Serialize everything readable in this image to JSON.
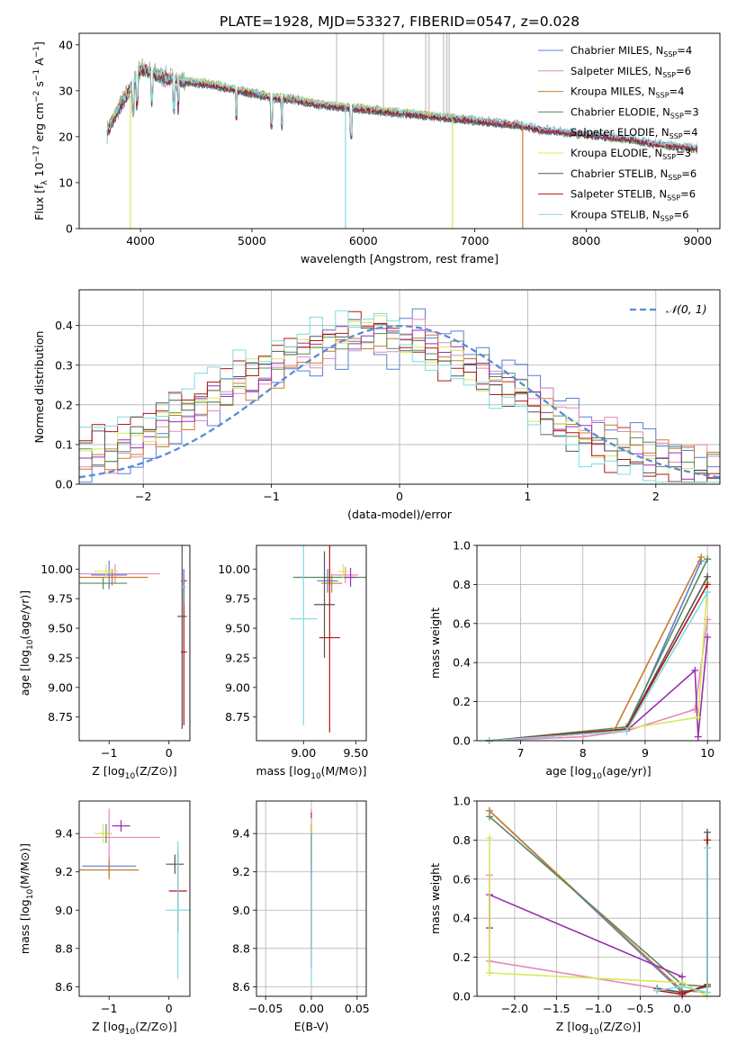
{
  "figure": {
    "title": "PLATE=1928, MJD=53327, FIBERID=0547, z=0.028"
  },
  "series_styles": [
    {
      "name": "Chabrier MILES, N_SSP=4",
      "legend_main": "Chabrier MILES, N",
      "legend_sub": "SSP",
      "legend_tail": "=4",
      "color": "#5b7fd6"
    },
    {
      "name": "Salpeter MILES, N_SSP=6",
      "legend_main": "Salpeter MILES, N",
      "legend_sub": "SSP",
      "legend_tail": "=6",
      "color": "#e588b8"
    },
    {
      "name": "Kroupa MILES, N_SSP=4",
      "legend_main": "Kroupa MILES, N",
      "legend_sub": "SSP",
      "legend_tail": "=4",
      "color": "#c87d2e"
    },
    {
      "name": "Chabrier ELODIE, N_SSP=3",
      "legend_main": "Chabrier ELODIE, N",
      "legend_sub": "SSP",
      "legend_tail": "=3",
      "color": "#5b8a5b"
    },
    {
      "name": "Salpeter ELODIE, N_SSP=4",
      "legend_main": "Salpeter ELODIE, N",
      "legend_sub": "SSP",
      "legend_tail": "=4",
      "color": "#9a2fb0"
    },
    {
      "name": "Kroupa ELODIE, N_SSP=3",
      "legend_main": "Kroupa ELODIE, N",
      "legend_sub": "SSP",
      "legend_tail": "=3",
      "color": "#d8e85a"
    },
    {
      "name": "Chabrier STELIB, N_SSP=6",
      "legend_main": "Chabrier STELIB, N",
      "legend_sub": "SSP",
      "legend_tail": "=6",
      "color": "#555555"
    },
    {
      "name": "Salpeter STELIB, N_SSP=6",
      "legend_main": "Salpeter STELIB, N",
      "legend_sub": "SSP",
      "legend_tail": "=6",
      "color": "#b01515"
    },
    {
      "name": "Kroupa STELIB, N_SSP=6",
      "legend_main": "Kroupa STELIB, N",
      "legend_sub": "SSP",
      "legend_tail": "=6",
      "color": "#7fdbe0"
    }
  ],
  "chart_data": [
    {
      "id": "spectrum",
      "type": "line",
      "xlabel": "wavelength [Angstrom, rest frame]",
      "ylabel": "Flux [f_λ 10^-17 erg cm^-2 s^-1 A^-1]",
      "xlim": [
        3450,
        9200
      ],
      "ylim": [
        0,
        42.5
      ],
      "xticks": [
        4000,
        5000,
        6000,
        7000,
        8000,
        9000
      ],
      "yticks": [
        0,
        10,
        20,
        30,
        40
      ],
      "grid": false,
      "legend": "top-right",
      "data_curve": {
        "x": [
          3700,
          3800,
          3900,
          4000,
          4100,
          4200,
          4400,
          4600,
          4800,
          5000,
          5200,
          5400,
          5600,
          5800,
          6000,
          6200,
          6400,
          6600,
          6800,
          7000,
          7200,
          7400,
          7600,
          7800,
          8000,
          8200,
          8400,
          8600,
          8800,
          9000
        ],
        "y": [
          21,
          26,
          30,
          35,
          34,
          33,
          32,
          31.5,
          30.5,
          29.5,
          28.5,
          28,
          27,
          26.5,
          26,
          25.5,
          25,
          24.5,
          24,
          23.5,
          23,
          22.5,
          21.5,
          21,
          20.5,
          20,
          19.5,
          18.5,
          18,
          17.5
        ]
      },
      "model_end_wavelength": [
        7430,
        9000,
        7430,
        9000,
        9000,
        6800,
        9000,
        9000,
        9000
      ],
      "line_drops": [
        {
          "x": 3910,
          "color": "#d8e85a"
        },
        {
          "x": 5840,
          "color": "#7fdbe0"
        },
        {
          "x": 6800,
          "color": "#d8e85a"
        },
        {
          "x": 7430,
          "color": "#c87d2e"
        }
      ]
    },
    {
      "id": "residuals",
      "type": "line",
      "xlabel": "(data-model)/error",
      "ylabel": "Normed distribution",
      "xlim": [
        -2.5,
        2.5
      ],
      "ylim": [
        0,
        0.49
      ],
      "xticks": [
        -2,
        -1,
        0,
        1,
        2
      ],
      "yticks": [
        0.0,
        0.1,
        0.2,
        0.3,
        0.4
      ],
      "grid": true,
      "legend": "top-right",
      "legend_label": "𝒩(0, 1)",
      "normal_curve": {
        "mean": 0,
        "sigma": 1
      },
      "histogram_bins": {
        "start": -2.5,
        "width": 0.1
      },
      "histogram_base": [
        0.07,
        0.08,
        0.09,
        0.1,
        0.12,
        0.13,
        0.15,
        0.17,
        0.19,
        0.21,
        0.22,
        0.24,
        0.26,
        0.27,
        0.29,
        0.3,
        0.32,
        0.33,
        0.35,
        0.36,
        0.37,
        0.37,
        0.38,
        0.38,
        0.37,
        0.37,
        0.36,
        0.35,
        0.33,
        0.32,
        0.3,
        0.28,
        0.26,
        0.24,
        0.22,
        0.2,
        0.18,
        0.16,
        0.14,
        0.12,
        0.11,
        0.1,
        0.09,
        0.08,
        0.07,
        0.06,
        0.05,
        0.04,
        0.03,
        0.03
      ]
    },
    {
      "id": "age_vs_Z",
      "type": "scatter",
      "xlabel": "Z [log10(Z/Z⊙)]",
      "ylabel": "age [log10(age/yr)]",
      "xlim": [
        -1.5,
        0.35
      ],
      "ylim": [
        8.55,
        10.2
      ],
      "xticks": [
        -1,
        0
      ],
      "yticks": [
        8.75,
        9.0,
        9.25,
        9.5,
        9.75,
        10.0
      ],
      "grid": false,
      "points": [
        {
          "s": 0,
          "x": -1.0,
          "y": 9.95,
          "xerr": 0.3,
          "yerr": 0.12
        },
        {
          "s": 1,
          "x": -0.9,
          "y": 9.96,
          "xerr": 0.75,
          "yerr": 0.08
        },
        {
          "s": 2,
          "x": -0.95,
          "y": 9.93,
          "xerr": 0.6,
          "yerr": 0.07
        },
        {
          "s": 3,
          "x": -1.1,
          "y": 9.88,
          "xerr": 0.4,
          "yerr": 0.05
        },
        {
          "s": 4,
          "x": 0.25,
          "y": 9.9,
          "xerr": 0.05,
          "yerr": 0.1
        },
        {
          "s": 5,
          "x": -1.05,
          "y": 9.98,
          "xerr": 0.2,
          "yerr": 0.06
        },
        {
          "s": 6,
          "x": 0.22,
          "y": 9.6,
          "xerr": 0.08,
          "yerr": 0.95
        },
        {
          "s": 7,
          "x": 0.25,
          "y": 9.3,
          "xerr": 0.05,
          "yerr": 0.62
        },
        {
          "s": 8,
          "x": 0.24,
          "y": 9.85,
          "xerr": 0.05,
          "yerr": 0.15
        }
      ]
    },
    {
      "id": "age_vs_mass",
      "type": "scatter",
      "xlabel": "mass [log10(M/M⊙)]",
      "ylabel": "",
      "xlim": [
        8.55,
        9.6
      ],
      "ylim": [
        8.55,
        10.2
      ],
      "xticks": [
        9.0,
        9.5
      ],
      "yticks": [
        8.75,
        9.0,
        9.25,
        9.5,
        9.75,
        10.0
      ],
      "grid": false,
      "points": [
        {
          "s": 0,
          "x": 9.23,
          "y": 9.9,
          "xerr": 0.1,
          "yerr": 0.1
        },
        {
          "s": 1,
          "x": 9.4,
          "y": 9.95,
          "xerr": 0.12,
          "yerr": 0.07
        },
        {
          "s": 2,
          "x": 9.27,
          "y": 9.88,
          "xerr": 0.1,
          "yerr": 0.08
        },
        {
          "s": 3,
          "x": 9.25,
          "y": 9.93,
          "xerr": 0.35,
          "yerr": 0.07
        },
        {
          "s": 4,
          "x": 9.45,
          "y": 9.93,
          "xerr": 0.05,
          "yerr": 0.08
        },
        {
          "s": 5,
          "x": 9.38,
          "y": 9.98,
          "xerr": 0.05,
          "yerr": 0.06
        },
        {
          "s": 6,
          "x": 9.2,
          "y": 9.7,
          "xerr": 0.1,
          "yerr": 0.45
        },
        {
          "s": 7,
          "x": 9.25,
          "y": 9.42,
          "xerr": 0.1,
          "yerr": 0.8
        },
        {
          "s": 8,
          "x": 9.0,
          "y": 9.58,
          "xerr": 0.13,
          "yerr": 0.9
        }
      ]
    },
    {
      "id": "massweight_vs_age",
      "type": "line",
      "xlabel": "age [log10(age/yr)]",
      "ylabel": "mass weight",
      "xlim": [
        6.3,
        10.2
      ],
      "ylim": [
        0,
        1.0
      ],
      "xticks": [
        7,
        8,
        9,
        10
      ],
      "yticks": [
        0.0,
        0.2,
        0.4,
        0.6,
        0.8,
        1.0
      ],
      "grid": true,
      "series": [
        {
          "s": 0,
          "x": [
            6.5,
            8.7,
            9.9
          ],
          "y": [
            0.0,
            0.05,
            0.92
          ]
        },
        {
          "s": 1,
          "x": [
            6.5,
            8.0,
            8.7,
            9.8,
            10.0
          ],
          "y": [
            0.0,
            0.02,
            0.05,
            0.16,
            0.62
          ]
        },
        {
          "s": 2,
          "x": [
            6.5,
            8.5,
            9.9
          ],
          "y": [
            0.0,
            0.05,
            0.94
          ]
        },
        {
          "s": 3,
          "x": [
            6.5,
            8.7,
            10.0
          ],
          "y": [
            0.0,
            0.07,
            0.93
          ]
        },
        {
          "s": 4,
          "x": [
            6.5,
            8.7,
            9.8,
            9.85,
            10.0
          ],
          "y": [
            0.0,
            0.05,
            0.36,
            0.02,
            0.53
          ]
        },
        {
          "s": 5,
          "x": [
            6.5,
            8.5,
            9.85,
            10.0
          ],
          "y": [
            0.0,
            0.05,
            0.12,
            0.81
          ]
        },
        {
          "s": 6,
          "x": [
            6.5,
            8.7,
            10.0
          ],
          "y": [
            0.0,
            0.06,
            0.84
          ]
        },
        {
          "s": 7,
          "x": [
            6.5,
            8.7,
            10.0
          ],
          "y": [
            0.0,
            0.06,
            0.8
          ]
        },
        {
          "s": 8,
          "x": [
            6.5,
            8.7,
            10.0
          ],
          "y": [
            0.0,
            0.05,
            0.76
          ]
        }
      ]
    },
    {
      "id": "mass_vs_Z",
      "type": "scatter",
      "xlabel": "Z [log10(Z/Z⊙)]",
      "ylabel": "mass [log10(M/M⊙)]",
      "xlim": [
        -1.5,
        0.35
      ],
      "ylim": [
        8.55,
        9.57
      ],
      "xticks": [
        -1,
        0
      ],
      "yticks": [
        8.6,
        8.8,
        9.0,
        9.2,
        9.4
      ],
      "grid": false,
      "points": [
        {
          "s": 0,
          "x": -1.0,
          "y": 9.23,
          "xerr": 0.45,
          "yerr": 0.05
        },
        {
          "s": 1,
          "x": -1.0,
          "y": 9.38,
          "xerr": 0.85,
          "yerr": 0.15
        },
        {
          "s": 2,
          "x": -1.0,
          "y": 9.21,
          "xerr": 0.5,
          "yerr": 0.05
        },
        {
          "s": 3,
          "x": -1.05,
          "y": 9.4,
          "xerr": 0.1,
          "yerr": 0.05
        },
        {
          "s": 4,
          "x": -0.8,
          "y": 9.44,
          "xerr": 0.15,
          "yerr": 0.03
        },
        {
          "s": 5,
          "x": -1.1,
          "y": 9.4,
          "xerr": 0.15,
          "yerr": 0.05
        },
        {
          "s": 6,
          "x": 0.1,
          "y": 9.24,
          "xerr": 0.15,
          "yerr": 0.05
        },
        {
          "s": 7,
          "x": 0.15,
          "y": 9.1,
          "xerr": 0.15,
          "yerr": 0.21
        },
        {
          "s": 8,
          "x": 0.15,
          "y": 9.0,
          "xerr": 0.2,
          "yerr": 0.36
        }
      ]
    },
    {
      "id": "mass_vs_EBV",
      "type": "scatter",
      "xlabel": "E(B-V)",
      "ylabel": "",
      "xlim": [
        -0.06,
        0.06
      ],
      "ylim": [
        8.55,
        9.57
      ],
      "xticks": [
        -0.05,
        0.0,
        0.05
      ],
      "yticks": [
        8.6,
        8.8,
        9.0,
        9.2,
        9.4
      ],
      "grid": true,
      "points": [
        {
          "s": 0,
          "x": 0.0,
          "y": 9.3,
          "xerr": 0.0,
          "yerr": 0.15
        },
        {
          "s": 1,
          "x": 0.0,
          "y": 9.38,
          "xerr": 0.0,
          "yerr": 0.15
        },
        {
          "s": 2,
          "x": 0.0,
          "y": 9.3,
          "xerr": 0.0,
          "yerr": 0.1
        },
        {
          "s": 3,
          "x": 0.0,
          "y": 9.35,
          "xerr": 0.0,
          "yerr": 0.1
        },
        {
          "s": 4,
          "x": 0.0,
          "y": 9.45,
          "xerr": 0.0,
          "yerr": 0.06
        },
        {
          "s": 5,
          "x": 0.0,
          "y": 9.4,
          "xerr": 0.0,
          "yerr": 0.08
        },
        {
          "s": 6,
          "x": 0.0,
          "y": 9.1,
          "xerr": 0.0,
          "yerr": 0.3
        },
        {
          "s": 7,
          "x": 0.0,
          "y": 9.05,
          "xerr": 0.0,
          "yerr": 0.35
        },
        {
          "s": 8,
          "x": 0.0,
          "y": 9.0,
          "xerr": 0.0,
          "yerr": 0.4
        }
      ]
    },
    {
      "id": "massweight_vs_Z",
      "type": "line",
      "xlabel": "Z [log10(Z/Z⊙)]",
      "ylabel": "mass weight",
      "xlim": [
        -2.45,
        0.45
      ],
      "ylim": [
        0,
        1.0
      ],
      "xticks": [
        -2.0,
        -1.5,
        -1.0,
        -0.5,
        0.0
      ],
      "yticks": [
        0.0,
        0.2,
        0.4,
        0.6,
        0.8,
        1.0
      ],
      "grid": true,
      "series": [
        {
          "s": 0,
          "x": [
            -2.3,
            0.0,
            0.0
          ],
          "y": [
            0.95,
            0.02,
            0.05
          ]
        },
        {
          "s": 1,
          "x": [
            -2.3,
            -2.3,
            0.0,
            0.0
          ],
          "y": [
            0.62,
            0.18,
            0.02,
            0.0
          ]
        },
        {
          "s": 2,
          "x": [
            -2.3,
            0.0,
            0.3
          ],
          "y": [
            0.95,
            0.03,
            0.02
          ]
        },
        {
          "s": 3,
          "x": [
            -2.3,
            0.0,
            0.3
          ],
          "y": [
            0.92,
            0.06,
            0.05
          ]
        },
        {
          "s": 4,
          "x": [
            -2.3,
            -2.3,
            0.0,
            0.0
          ],
          "y": [
            0.35,
            0.52,
            0.1,
            0.02
          ]
        },
        {
          "s": 5,
          "x": [
            -2.3,
            -2.3,
            0.0,
            0.3
          ],
          "y": [
            0.81,
            0.12,
            0.07,
            0.0
          ]
        },
        {
          "s": 6,
          "x": [
            -0.3,
            0.0,
            0.3,
            0.3
          ],
          "y": [
            0.04,
            0.02,
            0.05,
            0.84
          ]
        },
        {
          "s": 7,
          "x": [
            -0.3,
            0.0,
            0.3,
            0.3
          ],
          "y": [
            0.03,
            0.01,
            0.06,
            0.8
          ]
        },
        {
          "s": 8,
          "x": [
            -0.3,
            0.0,
            0.3,
            0.3
          ],
          "y": [
            0.03,
            0.05,
            0.02,
            0.76
          ]
        }
      ]
    }
  ]
}
